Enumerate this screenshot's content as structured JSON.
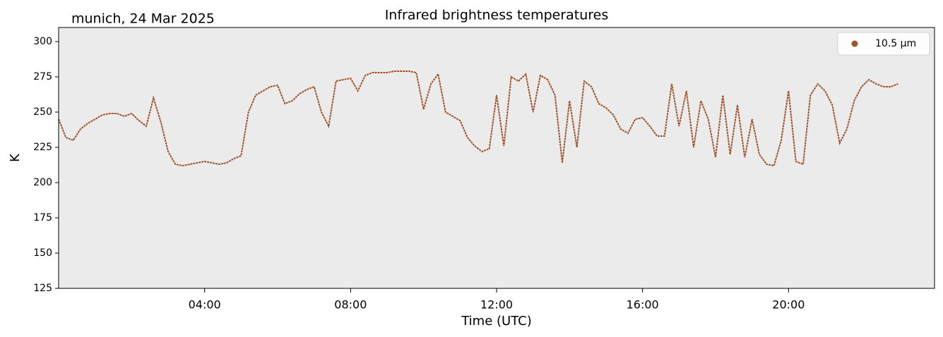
{
  "chart_data": {
    "type": "line",
    "title": "Infrared brightness temperatures",
    "subtitle": "munich, 24 Mar 2025",
    "xlabel": "Time (UTC)",
    "ylabel": "K",
    "xlim": [
      0,
      24
    ],
    "xticks": [
      {
        "value": 4,
        "label": "04:00"
      },
      {
        "value": 8,
        "label": "08:00"
      },
      {
        "value": 12,
        "label": "12:00"
      },
      {
        "value": 16,
        "label": "16:00"
      },
      {
        "value": 20,
        "label": "20:00"
      }
    ],
    "ylim": [
      125,
      310
    ],
    "yticks": [
      125,
      150,
      175,
      200,
      225,
      250,
      275,
      300
    ],
    "legend": "upper right",
    "x": [
      0,
      0.2,
      0.4,
      0.6,
      0.8,
      1,
      1.2,
      1.4,
      1.6,
      1.8,
      2,
      2.2,
      2.4,
      2.6,
      2.8,
      3,
      3.2,
      3.4,
      3.6,
      3.8,
      4,
      4.2,
      4.4,
      4.6,
      4.8,
      5,
      5.2,
      5.4,
      5.6,
      5.8,
      6,
      6.2,
      6.4,
      6.6,
      6.8,
      7,
      7.2,
      7.4,
      7.6,
      7.8,
      8,
      8.2,
      8.4,
      8.6,
      8.8,
      9,
      9.2,
      9.4,
      9.6,
      9.8,
      10,
      10.2,
      10.4,
      10.6,
      10.8,
      11,
      11.2,
      11.4,
      11.6,
      11.8,
      12,
      12.2,
      12.4,
      12.6,
      12.8,
      13,
      13.2,
      13.4,
      13.6,
      13.8,
      14,
      14.2,
      14.4,
      14.6,
      14.8,
      15,
      15.2,
      15.4,
      15.6,
      15.8,
      16,
      16.2,
      16.4,
      16.6,
      16.8,
      17,
      17.2,
      17.4,
      17.6,
      17.8,
      18,
      18.2,
      18.4,
      18.6,
      18.8,
      19,
      19.2,
      19.4,
      19.6,
      19.8,
      20,
      20.2,
      20.4,
      20.6,
      20.8,
      21,
      21.2,
      21.4,
      21.6,
      21.8,
      22,
      22.2,
      22.4,
      22.6,
      22.8,
      23
    ],
    "series": [
      {
        "name": "10.5 µm",
        "color": "#a0522d",
        "values": [
          245,
          232,
          230,
          238,
          242,
          245,
          248,
          249,
          249,
          247,
          249,
          244,
          240,
          260,
          243,
          222,
          213,
          212,
          213,
          214,
          215,
          214,
          213,
          214,
          217,
          219,
          250,
          262,
          265,
          268,
          269,
          256,
          258,
          263,
          266,
          268,
          250,
          240,
          272,
          273,
          274,
          265,
          276,
          278,
          278,
          278,
          279,
          279,
          279,
          278,
          252,
          270,
          277,
          250,
          247,
          244,
          232,
          226,
          222,
          224,
          262,
          226,
          275,
          272,
          277,
          250,
          276,
          273,
          262,
          214,
          258,
          225,
          272,
          268,
          256,
          253,
          248,
          238,
          235,
          245,
          246,
          240,
          233,
          233,
          270,
          240,
          265,
          225,
          258,
          245,
          218,
          262,
          220,
          255,
          218,
          245,
          220,
          213,
          212,
          230,
          265,
          215,
          213,
          262,
          270,
          265,
          255,
          228,
          238,
          258,
          268,
          273,
          270,
          268,
          268,
          270
        ]
      }
    ]
  }
}
